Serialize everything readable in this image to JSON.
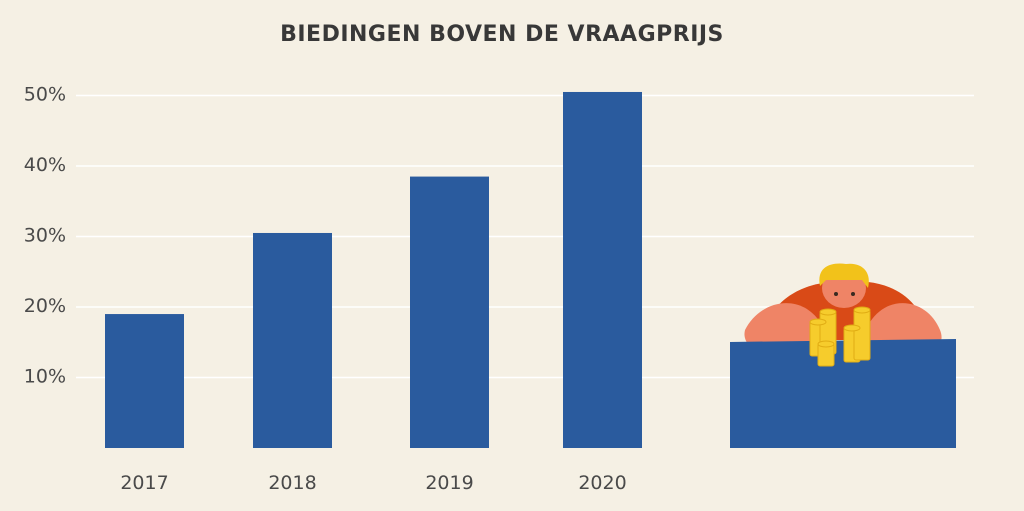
{
  "chart_data": {
    "type": "bar",
    "title": "BIEDINGEN BOVEN DE VRAAGPRIJS",
    "categories": [
      "2017",
      "2018",
      "2019",
      "2020"
    ],
    "values": [
      19,
      30.5,
      38.5,
      50.5
    ],
    "unit": "%",
    "ylim": [
      0,
      50
    ],
    "yticks": [
      "10%",
      "20%",
      "30%",
      "40%",
      "50%"
    ],
    "ytick_values": [
      10,
      20,
      30,
      40,
      50
    ],
    "grid": true,
    "colors": {
      "bar": "#2a5b9e",
      "background": "#f5f0e4",
      "grid": "#ffffff",
      "text": "#383838"
    }
  },
  "illustration": {
    "name": "person-with-coin-stacks-illustration",
    "colors": {
      "skin": "#ef8466",
      "shirt": "#d94a17",
      "hair": "#f2c21a",
      "coin": "#f6cc2c",
      "desk": "#2a5b9e"
    }
  }
}
